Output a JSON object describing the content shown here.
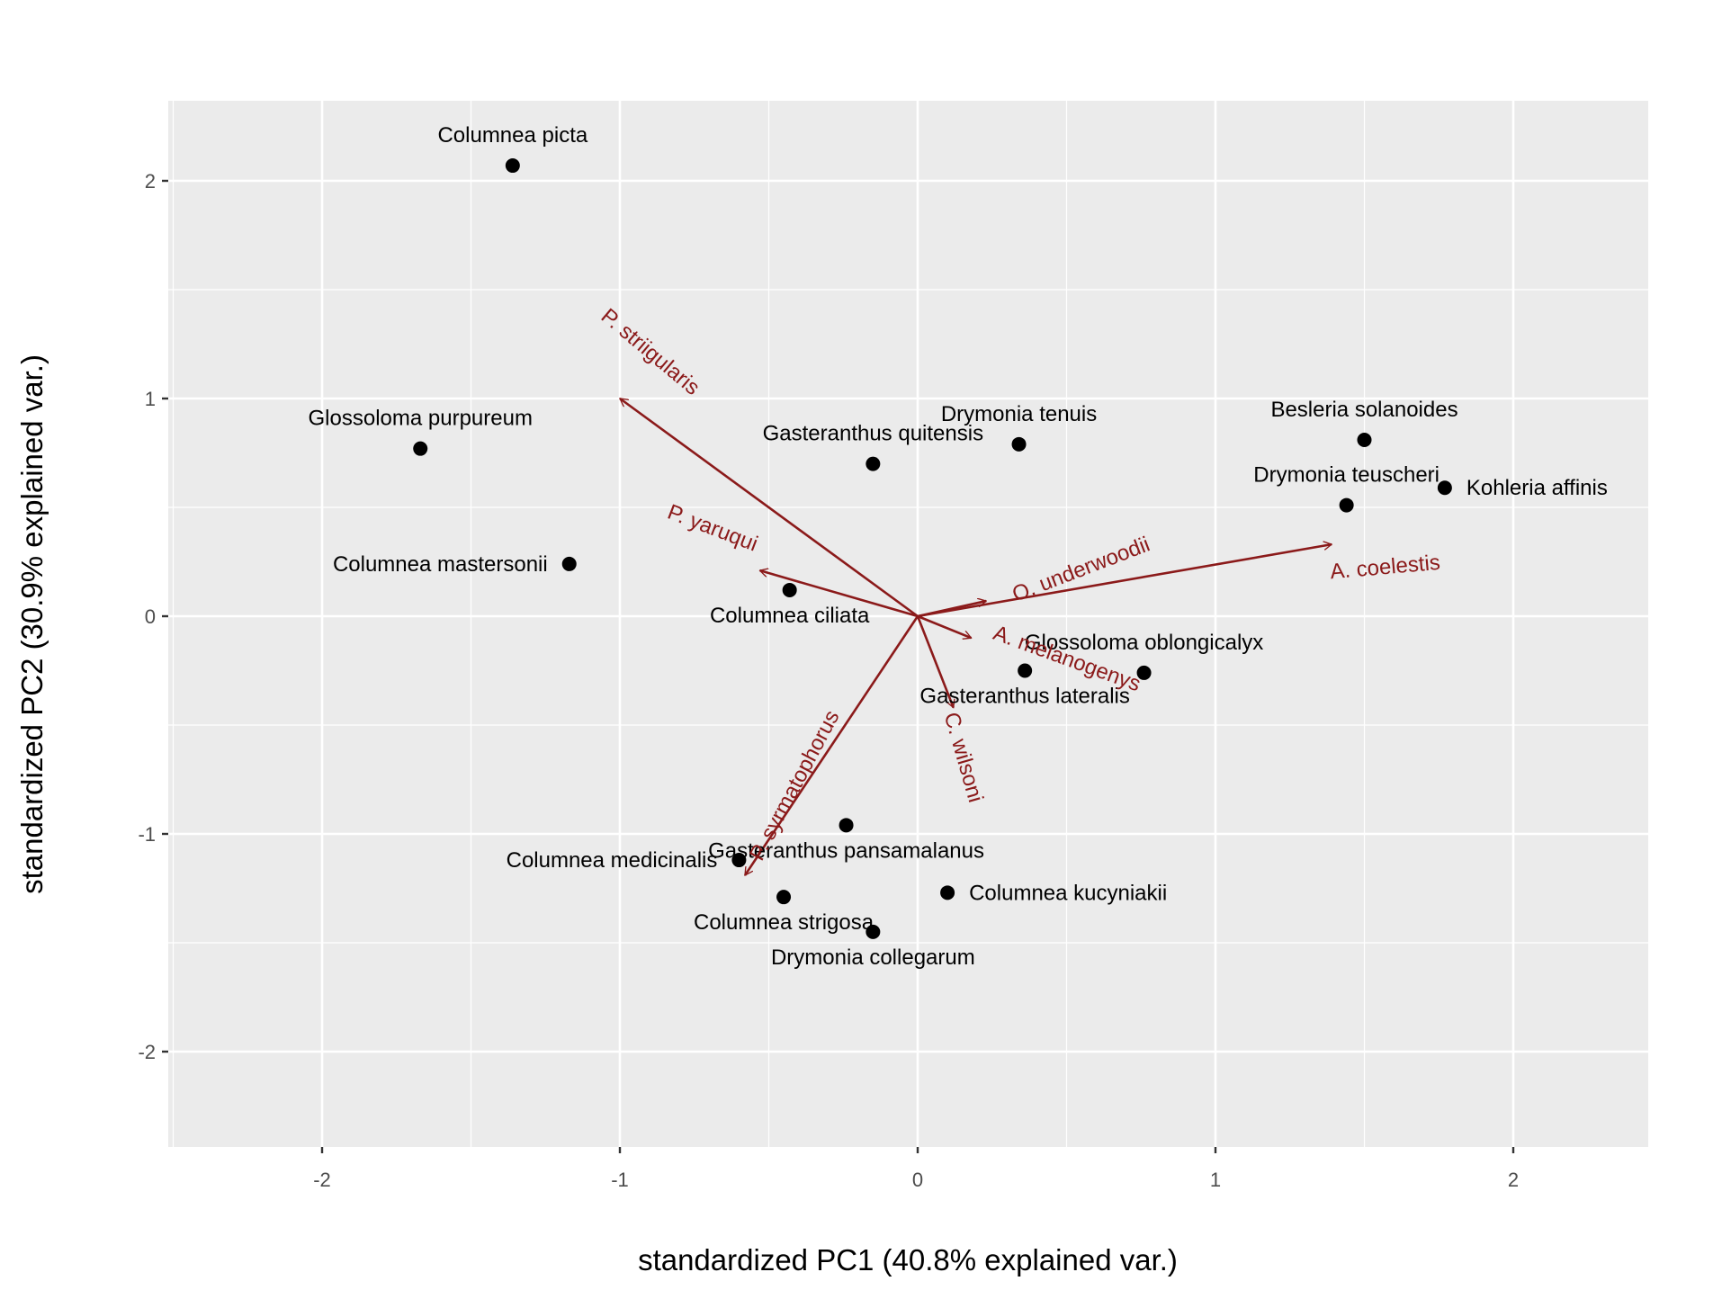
{
  "chart_data": {
    "type": "scatter",
    "subtype": "pca-biplot",
    "xlabel": "standardized PC1 (40.8% explained var.)",
    "ylabel": "standardized PC2 (30.9% explained var.)",
    "xlim": [
      -2.5,
      2.5
    ],
    "ylim": [
      -2.5,
      2.3
    ],
    "x_ticks": [
      -2,
      -1,
      0,
      1,
      2
    ],
    "y_ticks": [
      -2,
      -1,
      0,
      1,
      2
    ],
    "x_tick_labels": [
      "-2",
      "-1",
      "0",
      "1",
      "2"
    ],
    "y_tick_labels": [
      "-2",
      "-1",
      "0",
      "1",
      "2"
    ],
    "grid": true,
    "colors": {
      "panel": "#ebebeb",
      "grid": "#ffffff",
      "point": "#000000",
      "arrow": "#8b1a1a"
    },
    "points": [
      {
        "label": "Columnea picta",
        "x": -1.36,
        "y": 2.07,
        "label_pos": "above"
      },
      {
        "label": "Glossoloma purpureum",
        "x": -1.67,
        "y": 0.77,
        "label_pos": "above"
      },
      {
        "label": "Gasteranthus quitensis",
        "x": -0.15,
        "y": 0.7,
        "label_pos": "above"
      },
      {
        "label": "Drymonia tenuis",
        "x": 0.34,
        "y": 0.79,
        "label_pos": "above"
      },
      {
        "label": "Besleria solanoides",
        "x": 1.5,
        "y": 0.81,
        "label_pos": "above"
      },
      {
        "label": "Drymonia teuscheri",
        "x": 1.44,
        "y": 0.51,
        "label_pos": "above"
      },
      {
        "label": "Kohleria affinis",
        "x": 1.77,
        "y": 0.59,
        "label_pos": "right"
      },
      {
        "label": "Columnea mastersonii",
        "x": -1.17,
        "y": 0.24,
        "label_pos": "left"
      },
      {
        "label": "Columnea ciliata",
        "x": -0.43,
        "y": 0.12,
        "label_pos": "below"
      },
      {
        "label": "Glossoloma oblongicalyx",
        "x": 0.76,
        "y": -0.26,
        "label_pos": "above"
      },
      {
        "label": "Gasteranthus lateralis",
        "x": 0.36,
        "y": -0.25,
        "label_pos": "below"
      },
      {
        "label": "Gasteranthus pansamalanus",
        "x": -0.24,
        "y": -0.96,
        "label_pos": "below"
      },
      {
        "label": "Columnea medicinalis",
        "x": -0.6,
        "y": -1.12,
        "label_pos": "left"
      },
      {
        "label": "Columnea kucyniakii",
        "x": 0.1,
        "y": -1.27,
        "label_pos": "right"
      },
      {
        "label": "Columnea strigosa",
        "x": -0.45,
        "y": -1.29,
        "label_pos": "below"
      },
      {
        "label": "Drymonia collegarum",
        "x": -0.15,
        "y": -1.45,
        "label_pos": "below"
      }
    ],
    "loadings": [
      {
        "label": "P. striigularis",
        "x": -1.0,
        "y": 1.0,
        "label_x": -0.9,
        "label_y": 1.21,
        "angle": 40
      },
      {
        "label": "P. yaruqui",
        "x": -0.53,
        "y": 0.21,
        "label_x": -0.69,
        "label_y": 0.4,
        "angle": 21
      },
      {
        "label": "O. underwoodii",
        "x": 0.23,
        "y": 0.07,
        "label_x": 0.55,
        "label_y": 0.21,
        "angle": -21
      },
      {
        "label": "A. coelestis",
        "x": 1.39,
        "y": 0.33,
        "label_x": 1.57,
        "label_y": 0.22,
        "angle": -5
      },
      {
        "label": "A. melanogenys",
        "x": 0.18,
        "y": -0.1,
        "label_x": 0.5,
        "label_y": -0.2,
        "angle": 20
      },
      {
        "label": "C. wilsoni",
        "x": 0.12,
        "y": -0.42,
        "label_x": 0.15,
        "label_y": -0.65,
        "angle": 74
      },
      {
        "label": "P. syrmatophorus",
        "x": -0.58,
        "y": -1.19,
        "label_x": -0.41,
        "label_y": -0.78,
        "angle": -62
      }
    ]
  }
}
